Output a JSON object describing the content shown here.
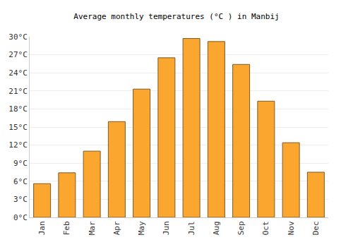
{
  "chart_data": {
    "type": "bar",
    "title": "Average monthly temperatures (°C ) in Manbij",
    "categories": [
      "Jan",
      "Feb",
      "Mar",
      "Apr",
      "May",
      "Jun",
      "Jul",
      "Aug",
      "Sep",
      "Oct",
      "Nov",
      "Dec"
    ],
    "values": [
      5.6,
      7.4,
      11.0,
      15.9,
      21.3,
      26.5,
      29.7,
      29.2,
      25.4,
      19.3,
      12.4,
      7.5
    ],
    "color": "#fba62f",
    "ylim": [
      0,
      30
    ],
    "yticks": [
      {
        "value": 0,
        "label": "0°C"
      },
      {
        "value": 3,
        "label": "3°C"
      },
      {
        "value": 6,
        "label": "6°C"
      },
      {
        "value": 9,
        "label": "9°C"
      },
      {
        "value": 12,
        "label": "12°C"
      },
      {
        "value": 15,
        "label": "15°C"
      },
      {
        "value": 18,
        "label": "18°C"
      },
      {
        "value": 21,
        "label": "21°C"
      },
      {
        "value": 24,
        "label": "24°C"
      },
      {
        "value": 27,
        "label": "27°C"
      },
      {
        "value": 30,
        "label": "30°C"
      }
    ],
    "grid": true
  }
}
